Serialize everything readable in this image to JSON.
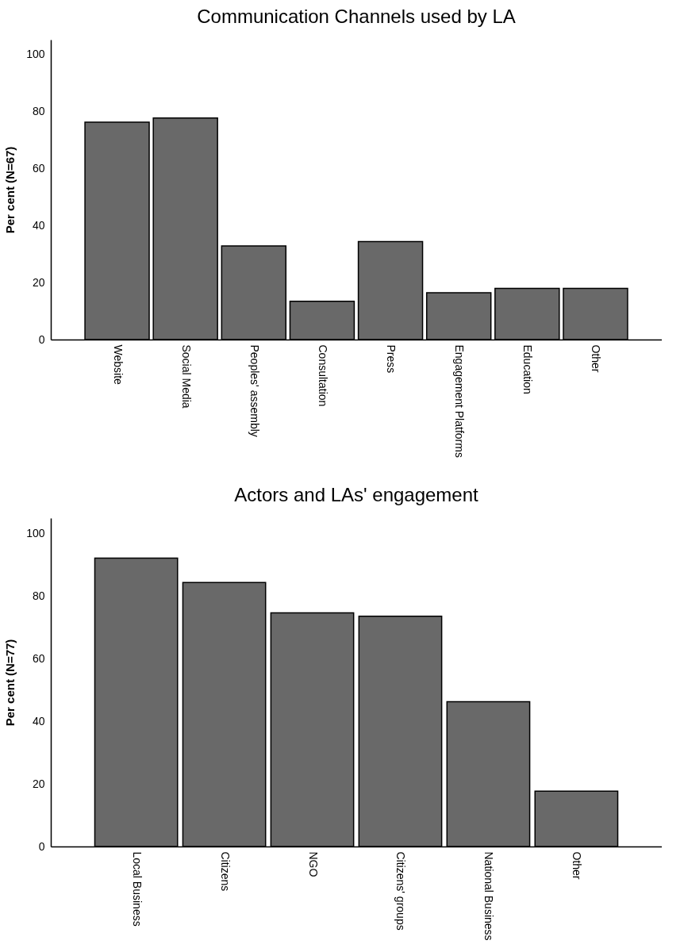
{
  "chart_data": [
    {
      "type": "bar",
      "title": "Communication Channels used by LA",
      "ylabel": "Per cent (N=67)",
      "categories": [
        "Website",
        "Social Media",
        "Peoples' assembly",
        "Consultation",
        "Press",
        "Engagement Platforms",
        "Education",
        "Other"
      ],
      "values": [
        76.1,
        77.6,
        32.8,
        13.4,
        34.3,
        16.4,
        17.9,
        17.9
      ],
      "color": "#696969",
      "ylim": [
        0,
        105
      ],
      "yticks": [
        0,
        20,
        40,
        60,
        80,
        100
      ],
      "grid": false
    },
    {
      "type": "bar",
      "title": "Actors and LAs' engagement",
      "ylabel": "Per cent (N=77)",
      "categories": [
        "Local Business",
        "Citizens",
        "NGO",
        "Citizens' groups",
        "National Business",
        "Other"
      ],
      "values": [
        92.2,
        84.4,
        74.7,
        73.6,
        46.3,
        17.7
      ],
      "color": "#696969",
      "ylim": [
        0,
        105
      ],
      "yticks": [
        0,
        20,
        40,
        60,
        80,
        100
      ],
      "grid": false
    }
  ]
}
